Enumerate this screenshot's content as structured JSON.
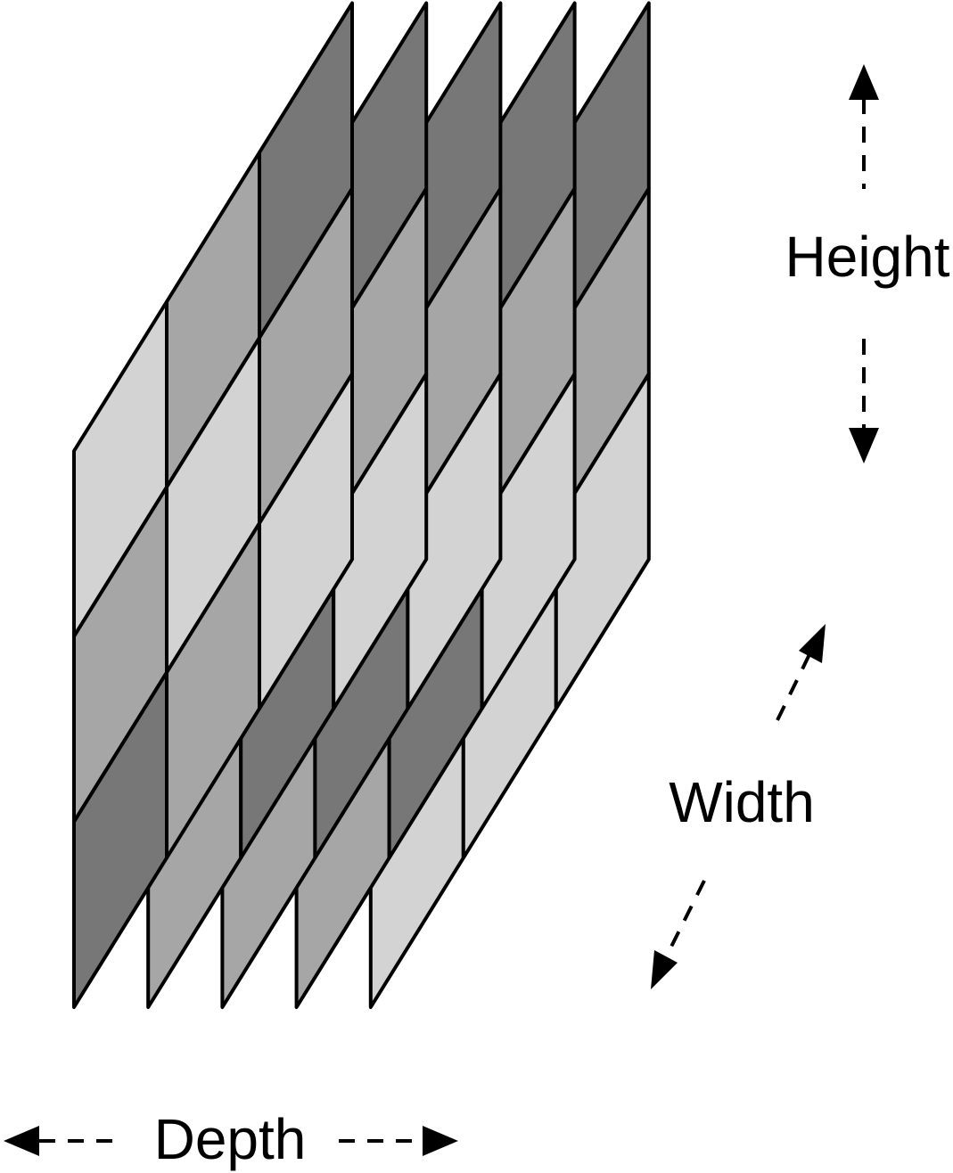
{
  "labels": {
    "height": "Height",
    "width": "Width",
    "depth": "Depth"
  },
  "colors": {
    "light": "#d3d3d3",
    "mid": "#a6a6a6",
    "dark": "#777777",
    "stroke": "#000000"
  },
  "slices": [
    {
      "name": "slice-1",
      "rows": [
        [
          "light",
          "mid",
          "dark"
        ],
        [
          "mid",
          "light",
          "mid"
        ],
        [
          "dark",
          "mid",
          "light"
        ]
      ]
    },
    {
      "name": "slice-2",
      "rows": [
        [
          "mid",
          "dark",
          "dark"
        ],
        [
          "light",
          "mid",
          "mid"
        ],
        [
          "mid",
          "dark",
          "light"
        ]
      ]
    },
    {
      "name": "slice-3",
      "rows": [
        [
          "mid",
          "dark",
          "dark"
        ],
        [
          "light",
          "mid",
          "mid"
        ],
        [
          "mid",
          "dark",
          "light"
        ]
      ]
    },
    {
      "name": "slice-4",
      "rows": [
        [
          "mid",
          "dark",
          "dark"
        ],
        [
          "light",
          "mid",
          "mid"
        ],
        [
          "mid",
          "dark",
          "light"
        ]
      ]
    },
    {
      "name": "slice-5",
      "rows": [
        [
          "dark",
          "dark",
          "dark"
        ],
        [
          "mid",
          "mid",
          "mid"
        ],
        [
          "light",
          "light",
          "light"
        ]
      ]
    }
  ]
}
